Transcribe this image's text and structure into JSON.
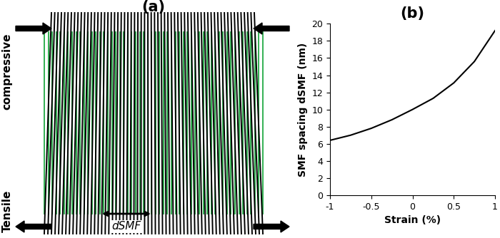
{
  "diagram": {
    "title": "(a)",
    "top_label": "compressive",
    "bottom_label": "Tensile",
    "spacing_label": "dSMF"
  },
  "chart_data": {
    "type": "line",
    "title": "(b)",
    "x_label": "Strain (%)",
    "y_label": "SMF spacing dSMF (nm)",
    "x": [
      -1,
      -0.75,
      -0.5,
      -0.25,
      0,
      0.25,
      0.5,
      0.75,
      1
    ],
    "values": [
      6.4,
      7.0,
      7.8,
      8.8,
      10.0,
      11.3,
      13.1,
      15.6,
      19.2
    ],
    "color": "black",
    "xlim": [
      -1,
      1
    ],
    "ylim": [
      0,
      20
    ],
    "xticks": [
      -1,
      -0.5,
      0,
      0.5,
      1
    ],
    "yticks": [
      0,
      2,
      4,
      6,
      8,
      10,
      12,
      14,
      16,
      18,
      20
    ],
    "grid": false
  }
}
